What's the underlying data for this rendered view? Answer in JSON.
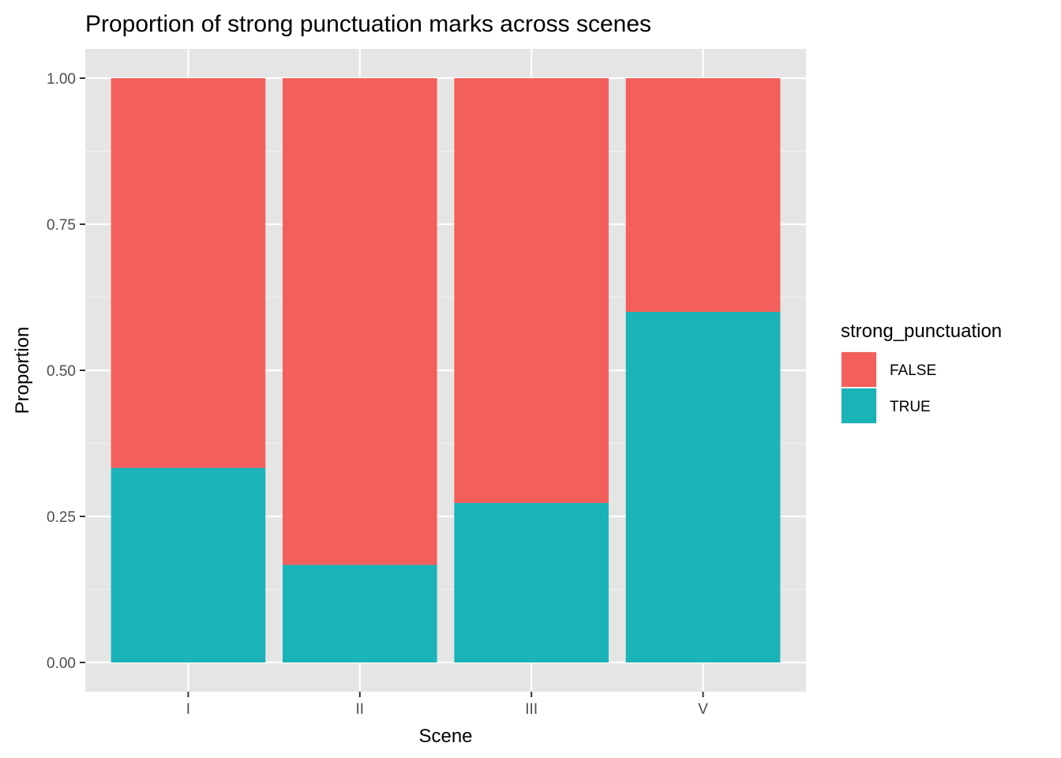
{
  "chart_data": {
    "type": "bar",
    "stacked": true,
    "title": "Proportion of strong punctuation marks across scenes",
    "xlabel": "Scene",
    "ylabel": "Proportion",
    "categories": [
      "I",
      "II",
      "III",
      "V"
    ],
    "ylim": [
      0,
      1
    ],
    "yticks": [
      0,
      0.25,
      0.5,
      0.75,
      1
    ],
    "ytick_labels": [
      "0.00",
      "0.25",
      "0.50",
      "0.75",
      "1.00"
    ],
    "grid": true,
    "legend": {
      "title": "strong_punctuation",
      "placement": "right"
    },
    "series": [
      {
        "name": "FALSE",
        "color": "#F8766D",
        "values": [
          0.667,
          0.833,
          0.727,
          0.4
        ]
      },
      {
        "name": "TRUE",
        "color": "#00BFC4",
        "values": [
          0.333,
          0.167,
          0.273,
          0.6
        ]
      }
    ],
    "panel_color": "#E5E5E5",
    "bar_colors_rendered": {
      "FALSE": "#F3605C",
      "TRUE": "#1AB3B8"
    }
  }
}
